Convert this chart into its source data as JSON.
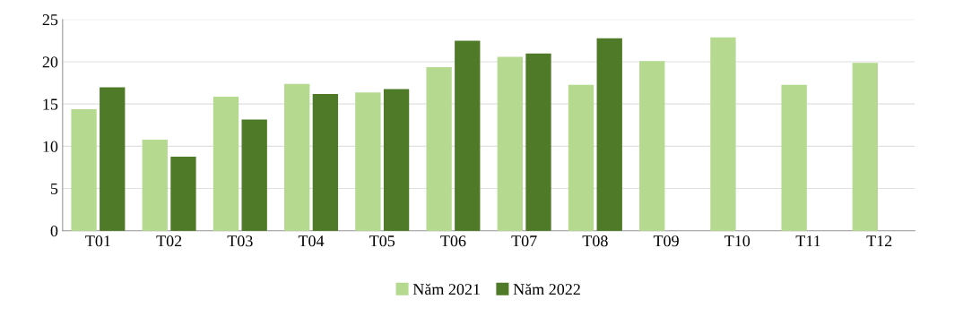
{
  "chart_data": {
    "type": "bar",
    "categories": [
      "T01",
      "T02",
      "T03",
      "T04",
      "T05",
      "T06",
      "T07",
      "T08",
      "T09",
      "T10",
      "T11",
      "T12"
    ],
    "series": [
      {
        "name": "Năm 2021",
        "color": "#b5d98f",
        "values": [
          14.3,
          10.7,
          15.8,
          17.3,
          16.3,
          19.3,
          20.5,
          17.2,
          20.0,
          22.8,
          17.2,
          19.8
        ]
      },
      {
        "name": "Năm 2022",
        "color": "#4f7a28",
        "values": [
          16.9,
          8.7,
          13.1,
          16.1,
          16.7,
          22.4,
          20.9,
          22.7,
          null,
          null,
          null,
          null
        ]
      }
    ],
    "ylim": [
      0,
      25
    ],
    "yticks": [
      0,
      5,
      10,
      15,
      20,
      25
    ],
    "grid": "y",
    "legend": "bottom"
  }
}
